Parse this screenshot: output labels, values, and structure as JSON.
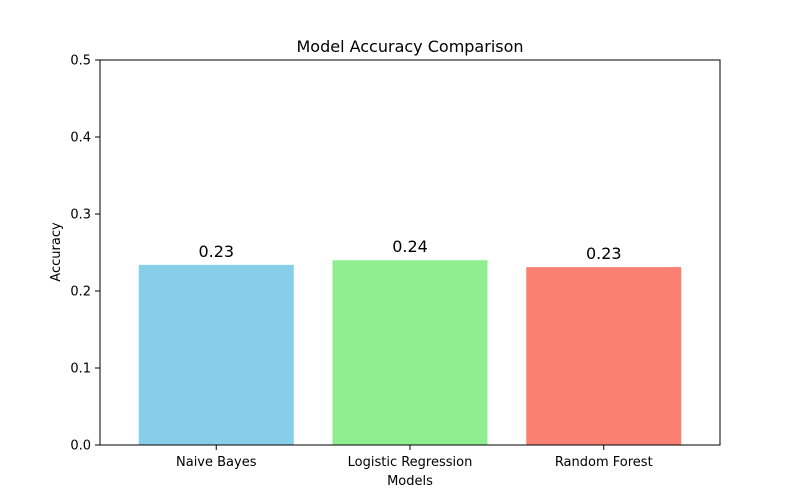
{
  "chart_data": {
    "type": "bar",
    "title": "Model Accuracy Comparison",
    "xlabel": "Models",
    "ylabel": "Accuracy",
    "categories": [
      "Naive Bayes",
      "Logistic Regression",
      "Random Forest"
    ],
    "values": [
      0.234,
      0.24,
      0.231
    ],
    "value_labels": [
      "0.23",
      "0.24",
      "0.23"
    ],
    "colors": [
      "#87ceeb",
      "#90ee90",
      "#fa8072"
    ],
    "ylim": [
      0,
      0.5
    ],
    "yticks": [
      0.0,
      0.1,
      0.2,
      0.3,
      0.4,
      0.5
    ],
    "ytick_labels": [
      "0.0",
      "0.1",
      "0.2",
      "0.3",
      "0.4",
      "0.5"
    ],
    "grid": false,
    "legend": false
  }
}
